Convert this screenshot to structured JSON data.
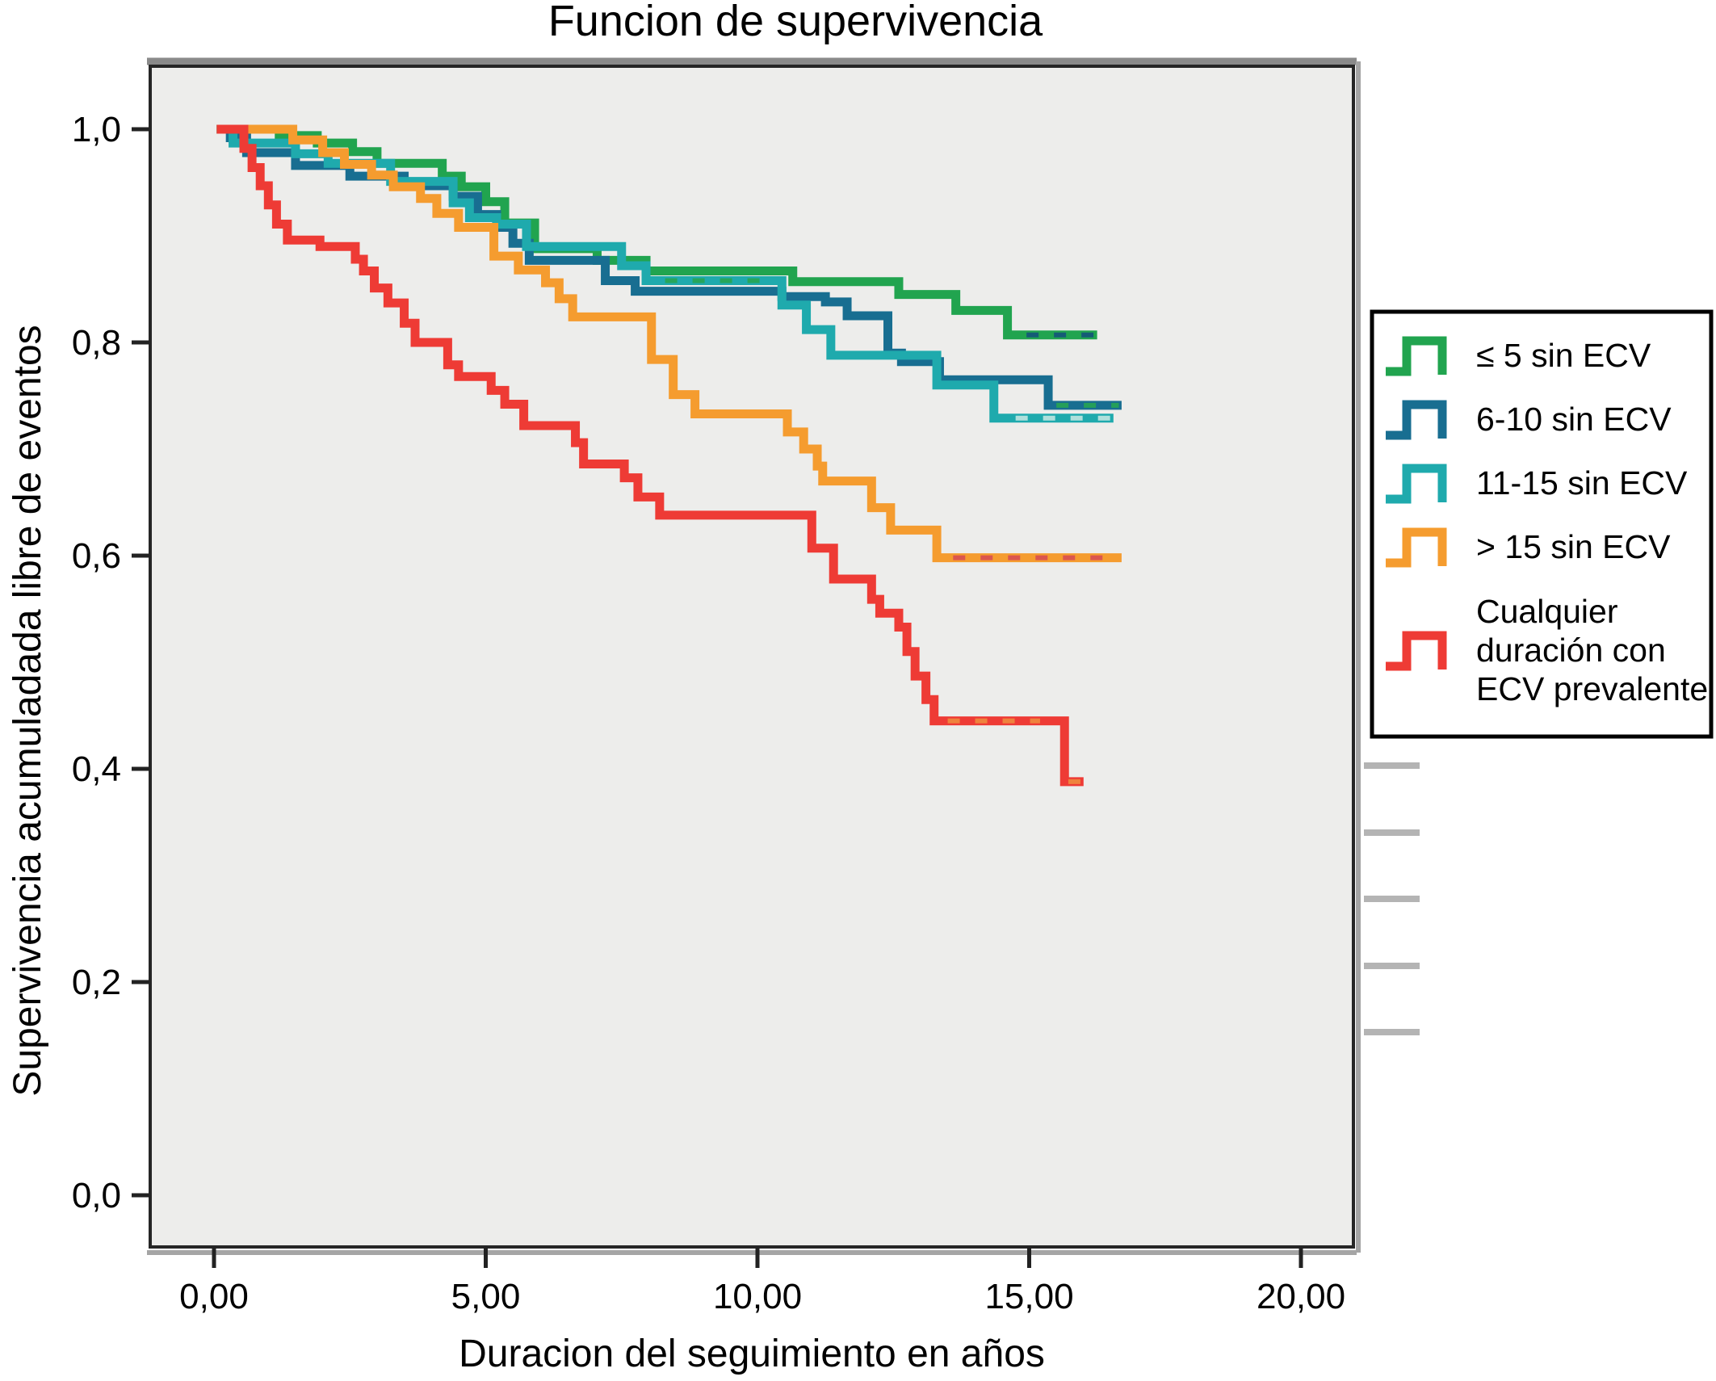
{
  "title": "Funcion de supervivencia",
  "x_axis": {
    "label": "Duracion del seguimiento en años",
    "ticks": [
      {
        "label": "0,00",
        "value": 0
      },
      {
        "label": "5,00",
        "value": 5
      },
      {
        "label": "10,00",
        "value": 10
      },
      {
        "label": "15,00",
        "value": 15
      },
      {
        "label": "20,00",
        "value": 20
      }
    ]
  },
  "y_axis": {
    "label": "Supervivencia acumuladada libre de eventos",
    "ticks": [
      {
        "label": "1,0",
        "value": 1.0
      },
      {
        "label": "0,8",
        "value": 0.8
      },
      {
        "label": "0,6",
        "value": 0.6
      },
      {
        "label": "0,4",
        "value": 0.4
      },
      {
        "label": "0,2",
        "value": 0.2
      },
      {
        "label": "0,0",
        "value": 0.0
      }
    ]
  },
  "legend": {
    "entries": [
      {
        "series": "le5",
        "lines": [
          "≤ 5 sin ECV"
        ],
        "color": "#21A44F"
      },
      {
        "series": "s6_10",
        "lines": [
          "6-10 sin ECV"
        ],
        "color": "#186E91"
      },
      {
        "series": "s11_15",
        "lines": [
          "11-15 sin ECV"
        ],
        "color": "#1FAAAD"
      },
      {
        "series": "gt15",
        "lines": [
          "> 15 sin ECV"
        ],
        "color": "#F59C2F"
      },
      {
        "series": "ecv",
        "lines": [
          "Cualquier",
          "duración con",
          "ECV prevalente"
        ],
        "color": "#EE3B35"
      }
    ]
  },
  "colors": {
    "plot_background": "#EDEDEB",
    "frame": "#262626",
    "frame_shadow": "#8F8F8F",
    "side_mark": "#B4B4B4",
    "green": "#21A44F",
    "dark_teal": "#186E91",
    "cyan": "#1FAAAD",
    "orange": "#F59C2F",
    "red": "#EE3B35"
  },
  "chart_data": {
    "type": "line",
    "subtype": "kaplan-meier-step",
    "title": "Funcion de supervivencia",
    "xlabel": "Duracion del seguimiento en años",
    "ylabel": "Supervivencia acumuladada libre de eventos",
    "xlim": [
      0,
      21
    ],
    "ylim": [
      0,
      1.05
    ],
    "grid": false,
    "legend_position": "right",
    "x_tick_values": [
      0,
      5,
      10,
      15,
      20
    ],
    "y_tick_values": [
      0.0,
      0.2,
      0.4,
      0.6,
      0.8,
      1.0
    ],
    "series": [
      {
        "id": "le5",
        "name": "≤ 5 sin ECV",
        "color": "#21A44F",
        "end_x": 16.25,
        "points": [
          [
            0.05,
            1.0
          ],
          [
            1.2,
            0.994
          ],
          [
            1.9,
            0.987
          ],
          [
            2.55,
            0.979
          ],
          [
            3.0,
            0.968
          ],
          [
            4.2,
            0.956
          ],
          [
            4.55,
            0.946
          ],
          [
            5.0,
            0.932
          ],
          [
            5.35,
            0.912
          ],
          [
            5.9,
            0.888
          ],
          [
            7.05,
            0.877
          ],
          [
            7.95,
            0.867
          ],
          [
            10.65,
            0.857
          ],
          [
            12.6,
            0.845
          ],
          [
            13.65,
            0.83
          ],
          [
            14.6,
            0.807
          ]
        ]
      },
      {
        "id": "s6_10",
        "name": "6-10 sin ECV",
        "color": "#186E91",
        "end_x": 16.7,
        "points": [
          [
            0.05,
            1.0
          ],
          [
            0.3,
            0.992
          ],
          [
            0.6,
            0.978
          ],
          [
            1.5,
            0.966
          ],
          [
            2.5,
            0.956
          ],
          [
            3.5,
            0.947
          ],
          [
            4.4,
            0.937
          ],
          [
            4.85,
            0.92
          ],
          [
            5.2,
            0.908
          ],
          [
            5.5,
            0.893
          ],
          [
            5.8,
            0.877
          ],
          [
            7.2,
            0.858
          ],
          [
            7.75,
            0.848
          ],
          [
            10.45,
            0.843
          ],
          [
            11.25,
            0.838
          ],
          [
            11.65,
            0.825
          ],
          [
            12.4,
            0.79
          ],
          [
            12.65,
            0.782
          ],
          [
            13.35,
            0.765
          ],
          [
            15.35,
            0.741
          ]
        ]
      },
      {
        "id": "s11_15",
        "name": "11-15 sin ECV",
        "color": "#1FAAAD",
        "end_x": 16.55,
        "points": [
          [
            0.05,
            1.0
          ],
          [
            0.35,
            0.987
          ],
          [
            1.5,
            0.977
          ],
          [
            2.1,
            0.968
          ],
          [
            3.25,
            0.951
          ],
          [
            4.4,
            0.931
          ],
          [
            4.7,
            0.917
          ],
          [
            5.2,
            0.911
          ],
          [
            5.75,
            0.89
          ],
          [
            7.5,
            0.872
          ],
          [
            7.95,
            0.858
          ],
          [
            10.45,
            0.835
          ],
          [
            10.9,
            0.812
          ],
          [
            11.35,
            0.788
          ],
          [
            13.3,
            0.76
          ],
          [
            14.35,
            0.729
          ]
        ]
      },
      {
        "id": "gt15",
        "name": "> 15 sin ECV",
        "color": "#F59C2F",
        "end_x": 16.7,
        "points": [
          [
            0.05,
            1.0
          ],
          [
            1.45,
            0.99
          ],
          [
            2.0,
            0.978
          ],
          [
            2.4,
            0.967
          ],
          [
            2.9,
            0.957
          ],
          [
            3.3,
            0.946
          ],
          [
            3.8,
            0.935
          ],
          [
            4.1,
            0.921
          ],
          [
            4.5,
            0.908
          ],
          [
            5.15,
            0.881
          ],
          [
            5.6,
            0.868
          ],
          [
            6.1,
            0.856
          ],
          [
            6.35,
            0.841
          ],
          [
            6.6,
            0.824
          ],
          [
            8.05,
            0.784
          ],
          [
            8.45,
            0.751
          ],
          [
            8.85,
            0.733
          ],
          [
            10.55,
            0.716
          ],
          [
            10.85,
            0.7
          ],
          [
            11.1,
            0.684
          ],
          [
            11.2,
            0.67
          ],
          [
            12.1,
            0.645
          ],
          [
            12.45,
            0.624
          ],
          [
            13.3,
            0.598
          ]
        ]
      },
      {
        "id": "ecv",
        "name": "Cualquier duración con ECV prevalente",
        "color": "#EE3B35",
        "end_x": 16.0,
        "points": [
          [
            0.05,
            1.0
          ],
          [
            0.55,
            0.982
          ],
          [
            0.7,
            0.964
          ],
          [
            0.85,
            0.947
          ],
          [
            1.0,
            0.929
          ],
          [
            1.15,
            0.911
          ],
          [
            1.35,
            0.896
          ],
          [
            1.95,
            0.89
          ],
          [
            2.6,
            0.878
          ],
          [
            2.75,
            0.867
          ],
          [
            2.95,
            0.851
          ],
          [
            3.2,
            0.837
          ],
          [
            3.5,
            0.818
          ],
          [
            3.7,
            0.8
          ],
          [
            4.3,
            0.779
          ],
          [
            4.5,
            0.768
          ],
          [
            5.1,
            0.755
          ],
          [
            5.35,
            0.742
          ],
          [
            5.7,
            0.722
          ],
          [
            6.65,
            0.706
          ],
          [
            6.8,
            0.686
          ],
          [
            7.55,
            0.673
          ],
          [
            7.8,
            0.655
          ],
          [
            8.2,
            0.638
          ],
          [
            11.0,
            0.607
          ],
          [
            11.4,
            0.578
          ],
          [
            12.1,
            0.559
          ],
          [
            12.25,
            0.546
          ],
          [
            12.6,
            0.533
          ],
          [
            12.75,
            0.51
          ],
          [
            12.9,
            0.487
          ],
          [
            13.1,
            0.465
          ],
          [
            13.25,
            0.445
          ],
          [
            15.65,
            0.388
          ]
        ]
      }
    ],
    "censor_dashes": [
      {
        "x1": 8.3,
        "x2": 10.3,
        "y": 0.858,
        "color": "#27A553"
      },
      {
        "x1": 14.95,
        "x2": 16.2,
        "y": 0.807,
        "color": "#14557B"
      },
      {
        "x1": 15.5,
        "x2": 16.65,
        "y": 0.741,
        "color": "#27A553"
      },
      {
        "x1": 14.75,
        "x2": 16.5,
        "y": 0.729,
        "color": "#BFE6E2"
      },
      {
        "x1": 13.6,
        "x2": 16.6,
        "y": 0.598,
        "color": "#D94F52"
      },
      {
        "x1": 13.5,
        "x2": 15.2,
        "y": 0.445,
        "color": "#F08A3E"
      },
      {
        "x1": 15.72,
        "x2": 15.98,
        "y": 0.388,
        "color": "#F08A3E"
      }
    ]
  }
}
